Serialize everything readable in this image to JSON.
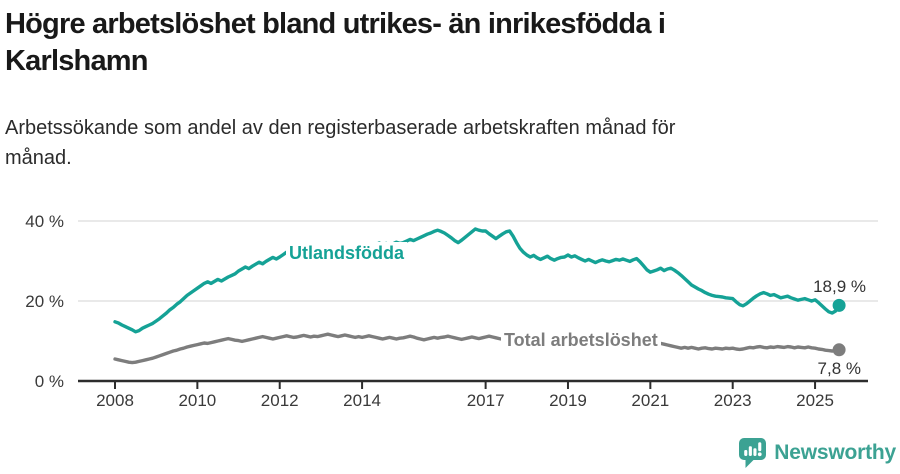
{
  "header": {
    "title_lines": [
      "Högre arbetslöshet bland utrikes- än inrikesfödda i",
      "Karlshamn"
    ],
    "subtitle_lines": [
      "Arbetssökande som andel av den registerbaserade arbetskraften månad för",
      "månad."
    ]
  },
  "footer": {
    "brand": "Newsworthy",
    "logo_icon": "bar-chart-speech-bubble-icon",
    "logo_color": "#3ca293"
  },
  "colors": {
    "accent_teal": "#15a296",
    "series_gray": "#7d7d7d",
    "gridline": "#dcdcdc",
    "axis": "#2d2d2d",
    "tick_text": "#3a3a3a",
    "annotation_text": "#333333"
  },
  "chart_data": {
    "type": "line",
    "title": "Högre arbetslöshet bland utrikes- än inrikesfödda i Karlshamn",
    "subtitle": "Arbetssökande som andel av den registerbaserade arbetskraften månad för månad.",
    "x": {
      "start_year": 2008,
      "start_month": 1,
      "end_year": 2025,
      "end_month": 8,
      "frequency": "monthly",
      "points": 212
    },
    "axis": {
      "x_ticks": [
        {
          "label": "2008",
          "value": 2008
        },
        {
          "label": "2010",
          "value": 2010
        },
        {
          "label": "2012",
          "value": 2012
        },
        {
          "label": "2014",
          "value": 2014
        },
        {
          "label": "2017",
          "value": 2017
        },
        {
          "label": "2019",
          "value": 2019
        },
        {
          "label": "2021",
          "value": 2021
        },
        {
          "label": "2023",
          "value": 2023
        },
        {
          "label": "2025",
          "value": 2025
        }
      ],
      "y_ticks": [
        {
          "label": "0 %",
          "value": 0
        },
        {
          "label": "20 %",
          "value": 20
        },
        {
          "label": "40 %",
          "value": 40
        }
      ],
      "ylim": [
        0,
        44
      ],
      "grid": "horizontal"
    },
    "series": [
      {
        "id": "utlandsfodda",
        "name": "Utlandsfödda",
        "color": "#15a296",
        "end_label": "18,9 %",
        "end_value": 18.9,
        "values": [
          14.8,
          14.5,
          14.0,
          13.6,
          13.2,
          12.8,
          12.3,
          12.6,
          13.2,
          13.6,
          14.0,
          14.4,
          15.0,
          15.6,
          16.3,
          17.0,
          17.8,
          18.4,
          19.2,
          19.8,
          20.6,
          21.4,
          22.0,
          22.6,
          23.2,
          23.8,
          24.4,
          24.8,
          24.4,
          24.9,
          25.4,
          25.0,
          25.5,
          26.0,
          26.4,
          26.8,
          27.5,
          28.0,
          28.5,
          28.1,
          28.7,
          29.2,
          29.7,
          29.3,
          29.9,
          30.4,
          30.9,
          30.5,
          31.0,
          31.6,
          32.2,
          31.7,
          32.3,
          32.8,
          32.3,
          32.9,
          33.3,
          32.8,
          33.2,
          32.7,
          33.1,
          33.5,
          33.0,
          33.4,
          33.8,
          33.3,
          33.7,
          33.2,
          33.6,
          33.1,
          33.5,
          33.8,
          33.4,
          33.8,
          34.2,
          33.7,
          34.1,
          34.5,
          34.0,
          34.4,
          33.9,
          34.3,
          34.7,
          34.4,
          34.6,
          35.0,
          35.4,
          35.1,
          35.5,
          35.9,
          36.3,
          36.7,
          37.0,
          37.4,
          37.7,
          37.4,
          37.0,
          36.4,
          35.8,
          35.1,
          34.6,
          35.2,
          35.9,
          36.6,
          37.3,
          38.0,
          37.7,
          37.5,
          37.5,
          36.8,
          36.2,
          35.6,
          36.2,
          36.8,
          37.3,
          37.5,
          36.2,
          34.6,
          33.2,
          32.2,
          31.5,
          31.0,
          31.4,
          30.8,
          30.4,
          30.8,
          31.2,
          30.6,
          30.2,
          30.6,
          30.9,
          31.0,
          31.5,
          31.0,
          31.3,
          30.8,
          30.4,
          30.0,
          30.4,
          30.0,
          29.6,
          30.0,
          30.3,
          30.0,
          29.8,
          30.1,
          30.4,
          30.2,
          30.5,
          30.2,
          29.9,
          30.3,
          30.6,
          29.8,
          28.8,
          27.8,
          27.2,
          27.5,
          27.8,
          28.2,
          27.6,
          28.0,
          28.2,
          27.7,
          27.1,
          26.4,
          25.6,
          24.8,
          24.0,
          23.5,
          23.0,
          22.6,
          22.1,
          21.7,
          21.4,
          21.2,
          21.1,
          21.0,
          20.8,
          20.7,
          20.6,
          19.8,
          19.1,
          18.8,
          19.3,
          20.0,
          20.7,
          21.3,
          21.8,
          22.1,
          21.8,
          21.4,
          21.6,
          21.2,
          20.8,
          21.0,
          21.2,
          20.8,
          20.5,
          20.2,
          20.4,
          20.6,
          20.3,
          20.0,
          20.3,
          19.6,
          18.8,
          18.0,
          17.3,
          17.0,
          17.5,
          18.9
        ]
      },
      {
        "id": "total",
        "name": "Total arbetslöshet",
        "color": "#7d7d7d",
        "end_label": "7,8 %",
        "end_value": 7.8,
        "values": [
          5.5,
          5.3,
          5.1,
          4.9,
          4.7,
          4.6,
          4.7,
          4.9,
          5.1,
          5.3,
          5.5,
          5.7,
          6.0,
          6.3,
          6.6,
          6.9,
          7.2,
          7.5,
          7.7,
          8.0,
          8.2,
          8.5,
          8.7,
          8.9,
          9.1,
          9.3,
          9.5,
          9.4,
          9.6,
          9.8,
          10.0,
          10.2,
          10.4,
          10.6,
          10.4,
          10.2,
          10.1,
          9.9,
          10.1,
          10.3,
          10.5,
          10.7,
          10.9,
          11.1,
          10.9,
          10.7,
          10.5,
          10.7,
          10.9,
          11.1,
          11.3,
          11.1,
          10.9,
          11.0,
          11.2,
          11.4,
          11.2,
          11.0,
          11.2,
          11.1,
          11.3,
          11.5,
          11.7,
          11.5,
          11.3,
          11.1,
          11.3,
          11.5,
          11.3,
          11.1,
          10.9,
          11.1,
          10.9,
          11.1,
          11.3,
          11.1,
          10.9,
          10.7,
          10.5,
          10.7,
          10.9,
          10.7,
          10.5,
          10.7,
          10.8,
          11.0,
          11.2,
          11.0,
          10.7,
          10.5,
          10.3,
          10.5,
          10.7,
          10.9,
          10.7,
          10.9,
          11.0,
          11.2,
          11.0,
          10.8,
          10.6,
          10.4,
          10.6,
          10.8,
          11.0,
          10.8,
          10.6,
          10.8,
          11.0,
          11.2,
          11.0,
          10.8,
          10.6,
          10.4,
          10.2,
          10.4,
          10.6,
          10.4,
          10.2,
          10.4,
          10.2,
          10.4,
          10.2,
          10.0,
          9.8,
          10.0,
          10.2,
          10.0,
          9.8,
          9.6,
          9.8,
          9.6,
          9.8,
          10.0,
          9.8,
          9.6,
          9.4,
          9.6,
          9.4,
          9.2,
          9.4,
          9.2,
          9.4,
          9.6,
          9.8,
          10.0,
          10.2,
          10.6,
          10.8,
          10.6,
          10.4,
          10.2,
          10.0,
          9.8,
          9.6,
          9.8,
          10.0,
          9.8,
          9.6,
          9.4,
          9.2,
          9.0,
          8.8,
          8.6,
          8.4,
          8.2,
          8.4,
          8.2,
          8.4,
          8.2,
          8.0,
          8.2,
          8.3,
          8.1,
          8.0,
          8.2,
          8.1,
          8.0,
          8.2,
          8.1,
          8.2,
          8.0,
          7.9,
          8.0,
          8.2,
          8.4,
          8.3,
          8.5,
          8.6,
          8.4,
          8.3,
          8.5,
          8.4,
          8.6,
          8.5,
          8.4,
          8.6,
          8.5,
          8.3,
          8.5,
          8.4,
          8.3,
          8.5,
          8.3,
          8.2,
          8.0,
          7.9,
          7.7,
          7.6,
          7.5,
          7.6,
          7.8
        ]
      }
    ],
    "legend_position": "inline-labels"
  }
}
